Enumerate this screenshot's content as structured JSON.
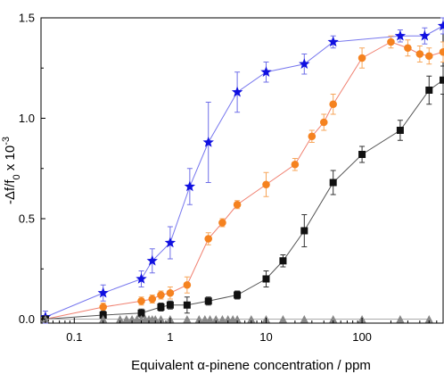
{
  "chart_data": {
    "type": "scatter",
    "xlabel": "Equivalent α-pinene concentration / ppm",
    "ylabel_main": "-Δf/f",
    "ylabel_sub": "0",
    "ylabel_tail": " x 10",
    "ylabel_sup": "-3",
    "x_scale": "log",
    "xlim": [
      0.045,
      700
    ],
    "ylim": [
      -0.02,
      1.5
    ],
    "x_ticks": [
      0.1,
      1,
      10,
      100
    ],
    "x_tick_labels": [
      "0.1",
      "1",
      "10",
      "100"
    ],
    "y_ticks": [
      0.0,
      0.5,
      1.0,
      1.5
    ],
    "y_tick_labels": [
      "0.0",
      "0.5",
      "1.0",
      "1.5"
    ],
    "grid": false,
    "legend": "none",
    "series": [
      {
        "marker": "star",
        "color": "#1010e0",
        "line_color": "#7777ee",
        "x": [
          0.05,
          0.2,
          0.5,
          0.65,
          1.0,
          1.6,
          2.5,
          5,
          10,
          25,
          50,
          250,
          450,
          700
        ],
        "y": [
          0.01,
          0.13,
          0.2,
          0.29,
          0.38,
          0.66,
          0.88,
          1.13,
          1.23,
          1.27,
          1.38,
          1.41,
          1.41,
          1.46
        ],
        "err": [
          0.03,
          0.04,
          0.04,
          0.06,
          0.08,
          0.09,
          0.2,
          0.1,
          0.05,
          0.05,
          0.03,
          0.03,
          0.04,
          0.04
        ]
      },
      {
        "marker": "circle",
        "color": "#f5821f",
        "line_color": "#f08070",
        "x": [
          0.05,
          0.2,
          0.5,
          0.65,
          0.8,
          1.0,
          1.5,
          2.5,
          3.5,
          5,
          10,
          20,
          30,
          40,
          50,
          100,
          200,
          300,
          400,
          500,
          700
        ],
        "y": [
          0.0,
          0.06,
          0.09,
          0.1,
          0.12,
          0.13,
          0.17,
          0.4,
          0.48,
          0.57,
          0.67,
          0.77,
          0.91,
          0.98,
          1.07,
          1.3,
          1.38,
          1.35,
          1.32,
          1.31,
          1.33
        ],
        "err": [
          0.01,
          0.02,
          0.02,
          0.02,
          0.02,
          0.03,
          0.04,
          0.03,
          0.02,
          0.02,
          0.06,
          0.03,
          0.03,
          0.04,
          0.05,
          0.05,
          0.03,
          0.04,
          0.04,
          0.04,
          0.05
        ]
      },
      {
        "marker": "square",
        "color": "#111111",
        "line_color": "#555555",
        "x": [
          0.05,
          0.2,
          0.5,
          0.8,
          1.0,
          1.5,
          2.5,
          5,
          10,
          15,
          25,
          50,
          100,
          250,
          500,
          700
        ],
        "y": [
          0.0,
          0.02,
          0.03,
          0.06,
          0.07,
          0.07,
          0.09,
          0.12,
          0.2,
          0.29,
          0.44,
          0.68,
          0.82,
          0.94,
          1.14,
          1.19
        ],
        "err": [
          0.01,
          0.02,
          0.02,
          0.02,
          0.02,
          0.04,
          0.02,
          0.02,
          0.04,
          0.03,
          0.08,
          0.06,
          0.04,
          0.05,
          0.07,
          0.07
        ]
      },
      {
        "marker": "triangle",
        "color": "#888888",
        "line_color": "#aaaaaa",
        "x": [
          0.05,
          0.2,
          0.3,
          0.35,
          0.4,
          0.45,
          0.5,
          0.55,
          0.6,
          0.65,
          0.7,
          0.8,
          1.0,
          1.5,
          2.0,
          2.3,
          2.6,
          3.0,
          3.5,
          4.0,
          4.5,
          5.0,
          7,
          10,
          15,
          25,
          50,
          100,
          250,
          500
        ],
        "y": [
          0.0,
          0.0,
          0.0,
          0.0,
          0.0,
          0.0,
          0.0,
          0.0,
          0.0,
          0.0,
          0.0,
          0.0,
          0.0,
          0.0,
          0.0,
          0.0,
          0.0,
          0.0,
          0.0,
          0.0,
          0.0,
          0.0,
          0.0,
          0.0,
          0.0,
          0.0,
          0.0,
          0.0,
          0.0,
          0.0
        ],
        "err": []
      }
    ]
  }
}
